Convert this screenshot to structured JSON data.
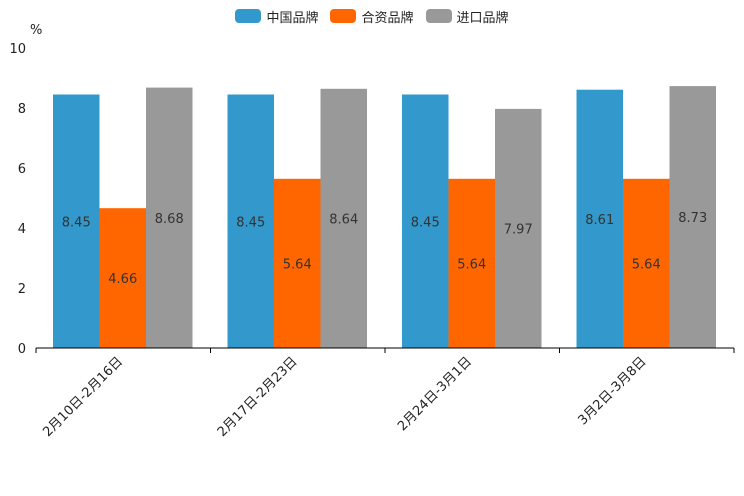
{
  "chart_data": {
    "type": "bar",
    "title": "",
    "xlabel": "",
    "ylabel": "%",
    "ylim": [
      0,
      10
    ],
    "yticks": [
      0,
      2,
      4,
      6,
      8,
      10
    ],
    "grid": false,
    "legend_position": "top-center",
    "categories": [
      "2月10日-2月16日",
      "2月17日-2月23日",
      "2月24日-3月1日",
      "3月2日-3月8日"
    ],
    "series": [
      {
        "name": "中国品牌",
        "color": "#3399CC",
        "values": [
          8.45,
          8.45,
          8.45,
          8.61
        ],
        "labels": [
          "8.45",
          "8.45",
          "8.45",
          "8.61"
        ]
      },
      {
        "name": "合资品牌",
        "color": "#FF6600",
        "values": [
          4.66,
          5.64,
          5.64,
          5.64
        ],
        "labels": [
          "4.66",
          "5.64",
          "5.64",
          "5.64"
        ]
      },
      {
        "name": "进口品牌",
        "color": "#999999",
        "values": [
          8.68,
          8.64,
          7.97,
          8.73
        ],
        "labels": [
          "8.68",
          "8.64",
          "7.97",
          "8.73"
        ]
      }
    ]
  }
}
